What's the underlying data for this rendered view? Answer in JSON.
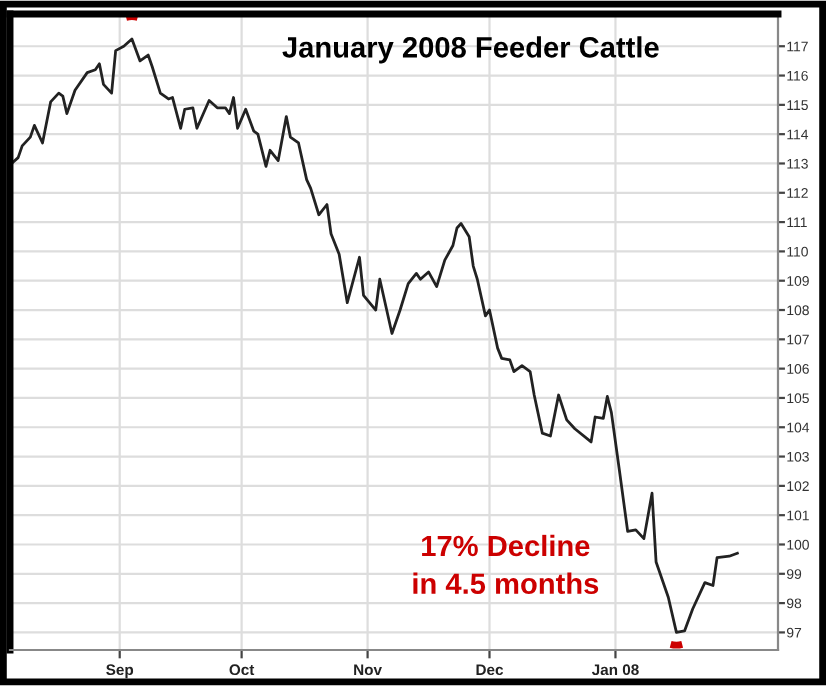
{
  "chart_data": {
    "type": "line",
    "title": "January 2008 Feeder Cattle",
    "x": [
      "2007-08-05",
      "2007-08-07",
      "2007-08-08",
      "2007-08-10",
      "2007-08-11",
      "2007-08-13",
      "2007-08-15",
      "2007-08-17",
      "2007-08-18",
      "2007-08-19",
      "2007-08-21",
      "2007-08-24",
      "2007-08-26",
      "2007-08-27",
      "2007-08-28",
      "2007-08-30",
      "2007-08-31",
      "2007-09-02",
      "2007-09-04",
      "2007-09-06",
      "2007-09-08",
      "2007-09-09",
      "2007-09-11",
      "2007-09-13",
      "2007-09-14",
      "2007-09-16",
      "2007-09-17",
      "2007-09-19",
      "2007-09-20",
      "2007-09-23",
      "2007-09-25",
      "2007-09-27",
      "2007-09-28",
      "2007-09-29",
      "2007-09-30",
      "2007-10-02",
      "2007-10-04",
      "2007-10-05",
      "2007-10-07",
      "2007-10-08",
      "2007-10-10",
      "2007-10-12",
      "2007-10-13",
      "2007-10-15",
      "2007-10-17",
      "2007-10-18",
      "2007-10-20",
      "2007-10-22",
      "2007-10-23",
      "2007-10-25",
      "2007-10-27",
      "2007-10-30",
      "2007-10-31",
      "2007-11-03",
      "2007-11-04",
      "2007-11-07",
      "2007-11-09",
      "2007-11-11",
      "2007-11-13",
      "2007-11-14",
      "2007-11-16",
      "2007-11-18",
      "2007-11-20",
      "2007-11-22",
      "2007-11-23",
      "2007-11-24",
      "2007-11-26",
      "2007-11-27",
      "2007-11-28",
      "2007-11-30",
      "2007-12-01",
      "2007-12-03",
      "2007-12-04",
      "2007-12-06",
      "2007-12-07",
      "2007-12-09",
      "2007-12-11",
      "2007-12-12",
      "2007-12-14",
      "2007-12-16",
      "2007-12-18",
      "2007-12-20",
      "2007-12-22",
      "2007-12-26",
      "2007-12-27",
      "2007-12-29",
      "2007-12-30",
      "2007-12-31",
      "2008-01-02",
      "2008-01-04",
      "2008-01-06",
      "2008-01-08",
      "2008-01-10",
      "2008-01-11",
      "2008-01-14",
      "2008-01-16",
      "2008-01-18",
      "2008-01-20",
      "2008-01-23",
      "2008-01-25",
      "2008-01-26",
      "2008-01-29",
      "2008-01-31"
    ],
    "series": [
      {
        "color": "#222222",
        "values": [
          112.95,
          113.2,
          113.6,
          113.9,
          114.3,
          113.7,
          115.1,
          115.4,
          115.3,
          114.7,
          115.5,
          116.1,
          116.2,
          116.4,
          115.7,
          115.4,
          116.85,
          117.0,
          117.25,
          116.5,
          116.7,
          116.3,
          115.4,
          115.2,
          115.25,
          114.2,
          114.85,
          114.9,
          114.2,
          115.15,
          114.9,
          114.9,
          114.7,
          115.25,
          114.2,
          114.85,
          114.1,
          114.0,
          112.9,
          113.45,
          113.1,
          114.6,
          113.9,
          113.7,
          112.45,
          112.15,
          111.25,
          111.6,
          110.6,
          109.9,
          108.25,
          109.8,
          108.5,
          108.0,
          109.05,
          107.2,
          108.0,
          108.9,
          109.25,
          109.05,
          109.3,
          108.8,
          109.7,
          110.2,
          110.8,
          110.95,
          110.5,
          109.5,
          109.05,
          107.8,
          108.0,
          106.7,
          106.35,
          106.3,
          105.9,
          106.1,
          105.9,
          105.1,
          103.8,
          103.7,
          105.1,
          104.25,
          103.95,
          103.5,
          104.35,
          104.3,
          105.05,
          104.5,
          102.5,
          100.45,
          100.5,
          100.2,
          101.75,
          99.4,
          98.2,
          97.0,
          97.05,
          97.8,
          98.7,
          98.6,
          99.55,
          99.6,
          99.7
        ]
      }
    ],
    "xlim": [
      "2007-08-05",
      "2008-02-10"
    ],
    "xticks": [
      {
        "value": "2007-09-01",
        "label": "Sep"
      },
      {
        "value": "2007-10-01",
        "label": "Oct"
      },
      {
        "value": "2007-11-01",
        "label": "Nov"
      },
      {
        "value": "2007-12-01",
        "label": "Dec"
      },
      {
        "value": "2008-01-01",
        "label": "Jan 08"
      }
    ],
    "ylim": [
      96.4,
      118.1
    ],
    "yticks": [
      97,
      98,
      99,
      100,
      101,
      102,
      103,
      104,
      105,
      106,
      107,
      108,
      109,
      110,
      111,
      112,
      113,
      114,
      115,
      116,
      117
    ],
    "grid": true,
    "annotations": [
      "17% Decline\nin 4.5 months"
    ]
  }
}
